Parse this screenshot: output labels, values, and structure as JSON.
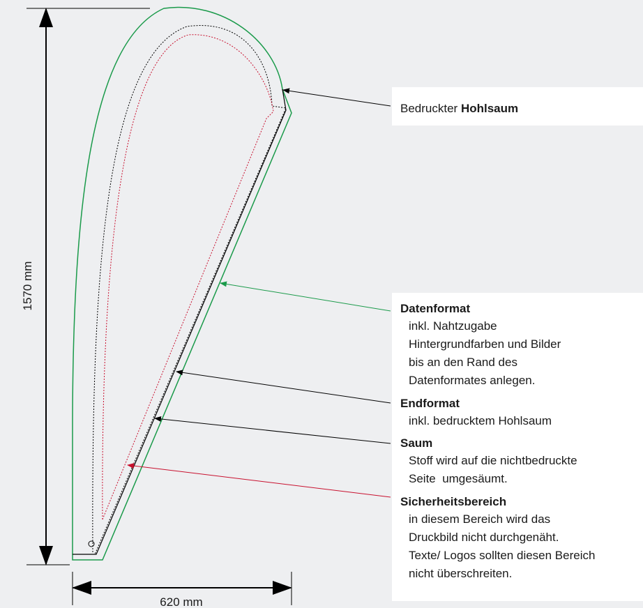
{
  "dimensions": {
    "height": "1570 mm",
    "width": "620 mm"
  },
  "callouts": [
    {
      "lead": "Bedruckter",
      "title": "Hohlsaum"
    },
    {
      "title": "Datenformat",
      "lines": [
        "inkl. Nahtzugabe",
        "Hintergrundfarben und Bilder",
        "bis an den Rand des",
        "Datenformates anlegen."
      ]
    },
    {
      "title": "Endformat",
      "lines": [
        "inkl. bedrucktem Hohlsaum"
      ]
    },
    {
      "title": "Saum",
      "lines": [
        "Stoff wird auf die nichtbedruckte",
        "Seite  umgesäumt."
      ]
    },
    {
      "title": "Sicherheitsbereich",
      "lines": [
        "in diesem Bereich wird das",
        "Druckbild nicht durchgenäht.",
        "Texte/ Logos sollten diesen Bereich",
        "nicht überschreiten."
      ]
    }
  ]
}
